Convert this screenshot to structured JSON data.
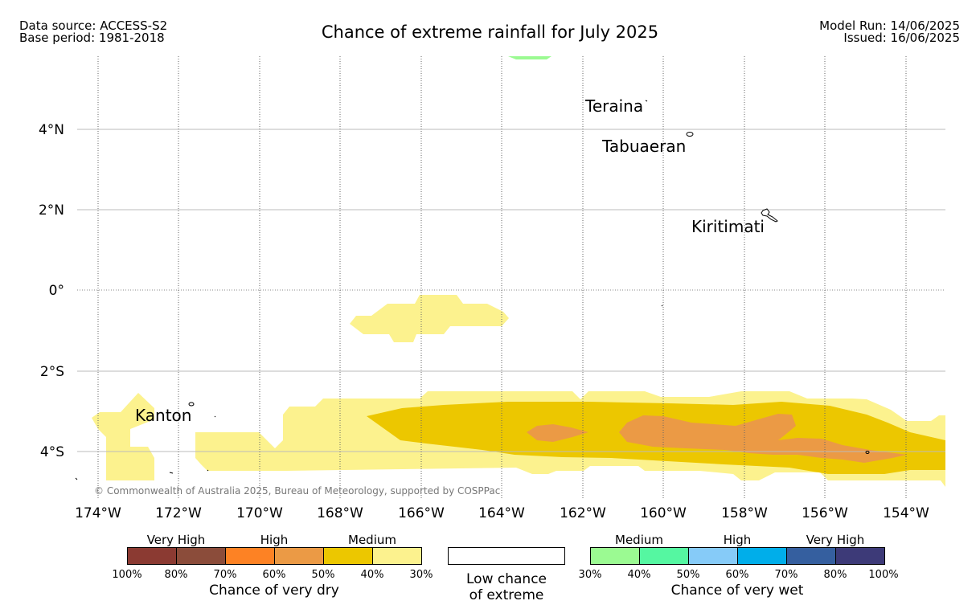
{
  "header": {
    "data_source": "Data source: ACCESS-S2",
    "base_period": "Base period: 1981-2018",
    "title": "Chance of extreme rainfall for July 2025",
    "model_run": "Model Run: 14/06/2025",
    "issued": "Issued: 16/06/2025"
  },
  "map": {
    "lon_ticks": [
      "174°W",
      "172°W",
      "170°W",
      "168°W",
      "166°W",
      "164°W",
      "162°W",
      "160°W",
      "158°W",
      "156°W",
      "154°W"
    ],
    "lat_ticks": [
      "4°N",
      "2°N",
      "0°",
      "2°S",
      "4°S"
    ],
    "places": [
      "Teraina",
      "Tabuaeran",
      "Kiritimati",
      "Kanton"
    ],
    "copyright": "© Commonwealth of Australia 2025, Bureau of Meteorology, supported by COSPPac",
    "colors": {
      "dry_medium_30_40": "#fcf28e",
      "dry_medium_40_50": "#ecc700",
      "dry_high_50_60": "#eb9a45",
      "wet_medium_30_40": "#9bfa92"
    }
  },
  "legend": {
    "dry": {
      "group_labels": [
        "Very High",
        "High",
        "Medium"
      ],
      "colors": [
        "#8b3a32",
        "#8b4c3a",
        "#fd8224",
        "#eb9a45",
        "#ecc700",
        "#fcf28e"
      ],
      "ticks": [
        "100%",
        "80%",
        "70%",
        "60%",
        "50%",
        "40%",
        "30%"
      ],
      "caption": "Chance of very dry"
    },
    "low": {
      "caption_line1": "Low chance",
      "caption_line2": "of extreme"
    },
    "wet": {
      "group_labels": [
        "Medium",
        "High",
        "Very High"
      ],
      "colors": [
        "#9bfa92",
        "#55f7a1",
        "#86cbf8",
        "#00aeea",
        "#355f9f",
        "#3d3a78"
      ],
      "ticks": [
        "30%",
        "40%",
        "50%",
        "60%",
        "70%",
        "80%",
        "100%"
      ],
      "caption": "Chance of very wet"
    }
  }
}
